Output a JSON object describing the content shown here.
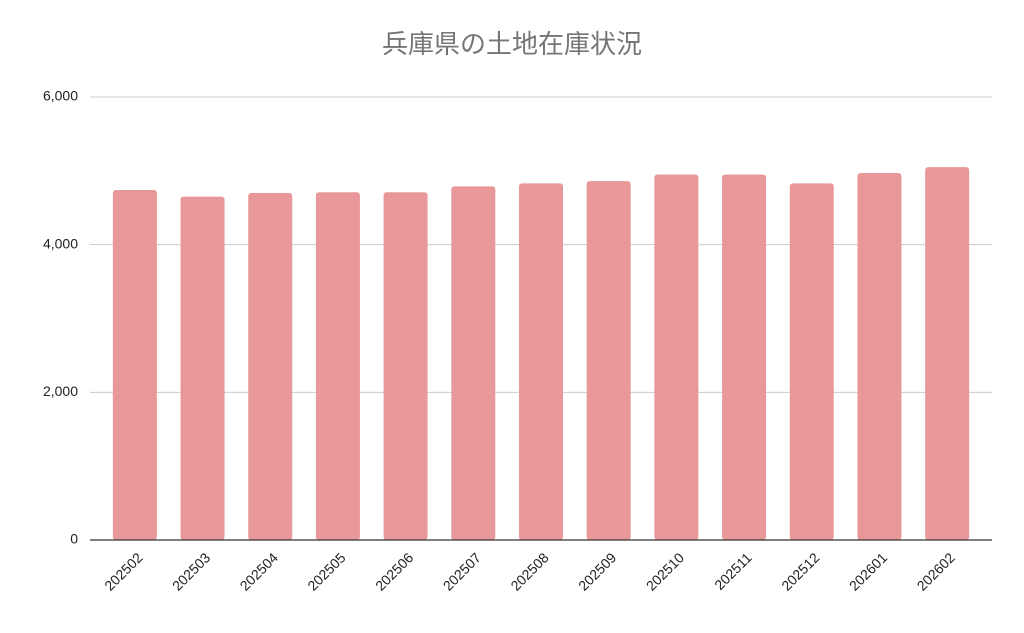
{
  "chart_data": {
    "type": "bar",
    "title": "兵庫県の土地在庫状況",
    "categories": [
      "202502",
      "202503",
      "202504",
      "202505",
      "202506",
      "202507",
      "202508",
      "202509",
      "202510",
      "202511",
      "202512",
      "202601",
      "202602"
    ],
    "values": [
      4740,
      4650,
      4700,
      4710,
      4710,
      4790,
      4830,
      4860,
      4950,
      4950,
      4830,
      4970,
      5050
    ],
    "color": "#e89898",
    "ylim": [
      0,
      6000
    ],
    "yticks": [
      0,
      {
        "value": 2000,
        "label": "2,000"
      },
      {
        "value": 4000,
        "label": "4,000"
      },
      {
        "value": 6000,
        "label": "6,000"
      }
    ],
    "grid": true
  }
}
